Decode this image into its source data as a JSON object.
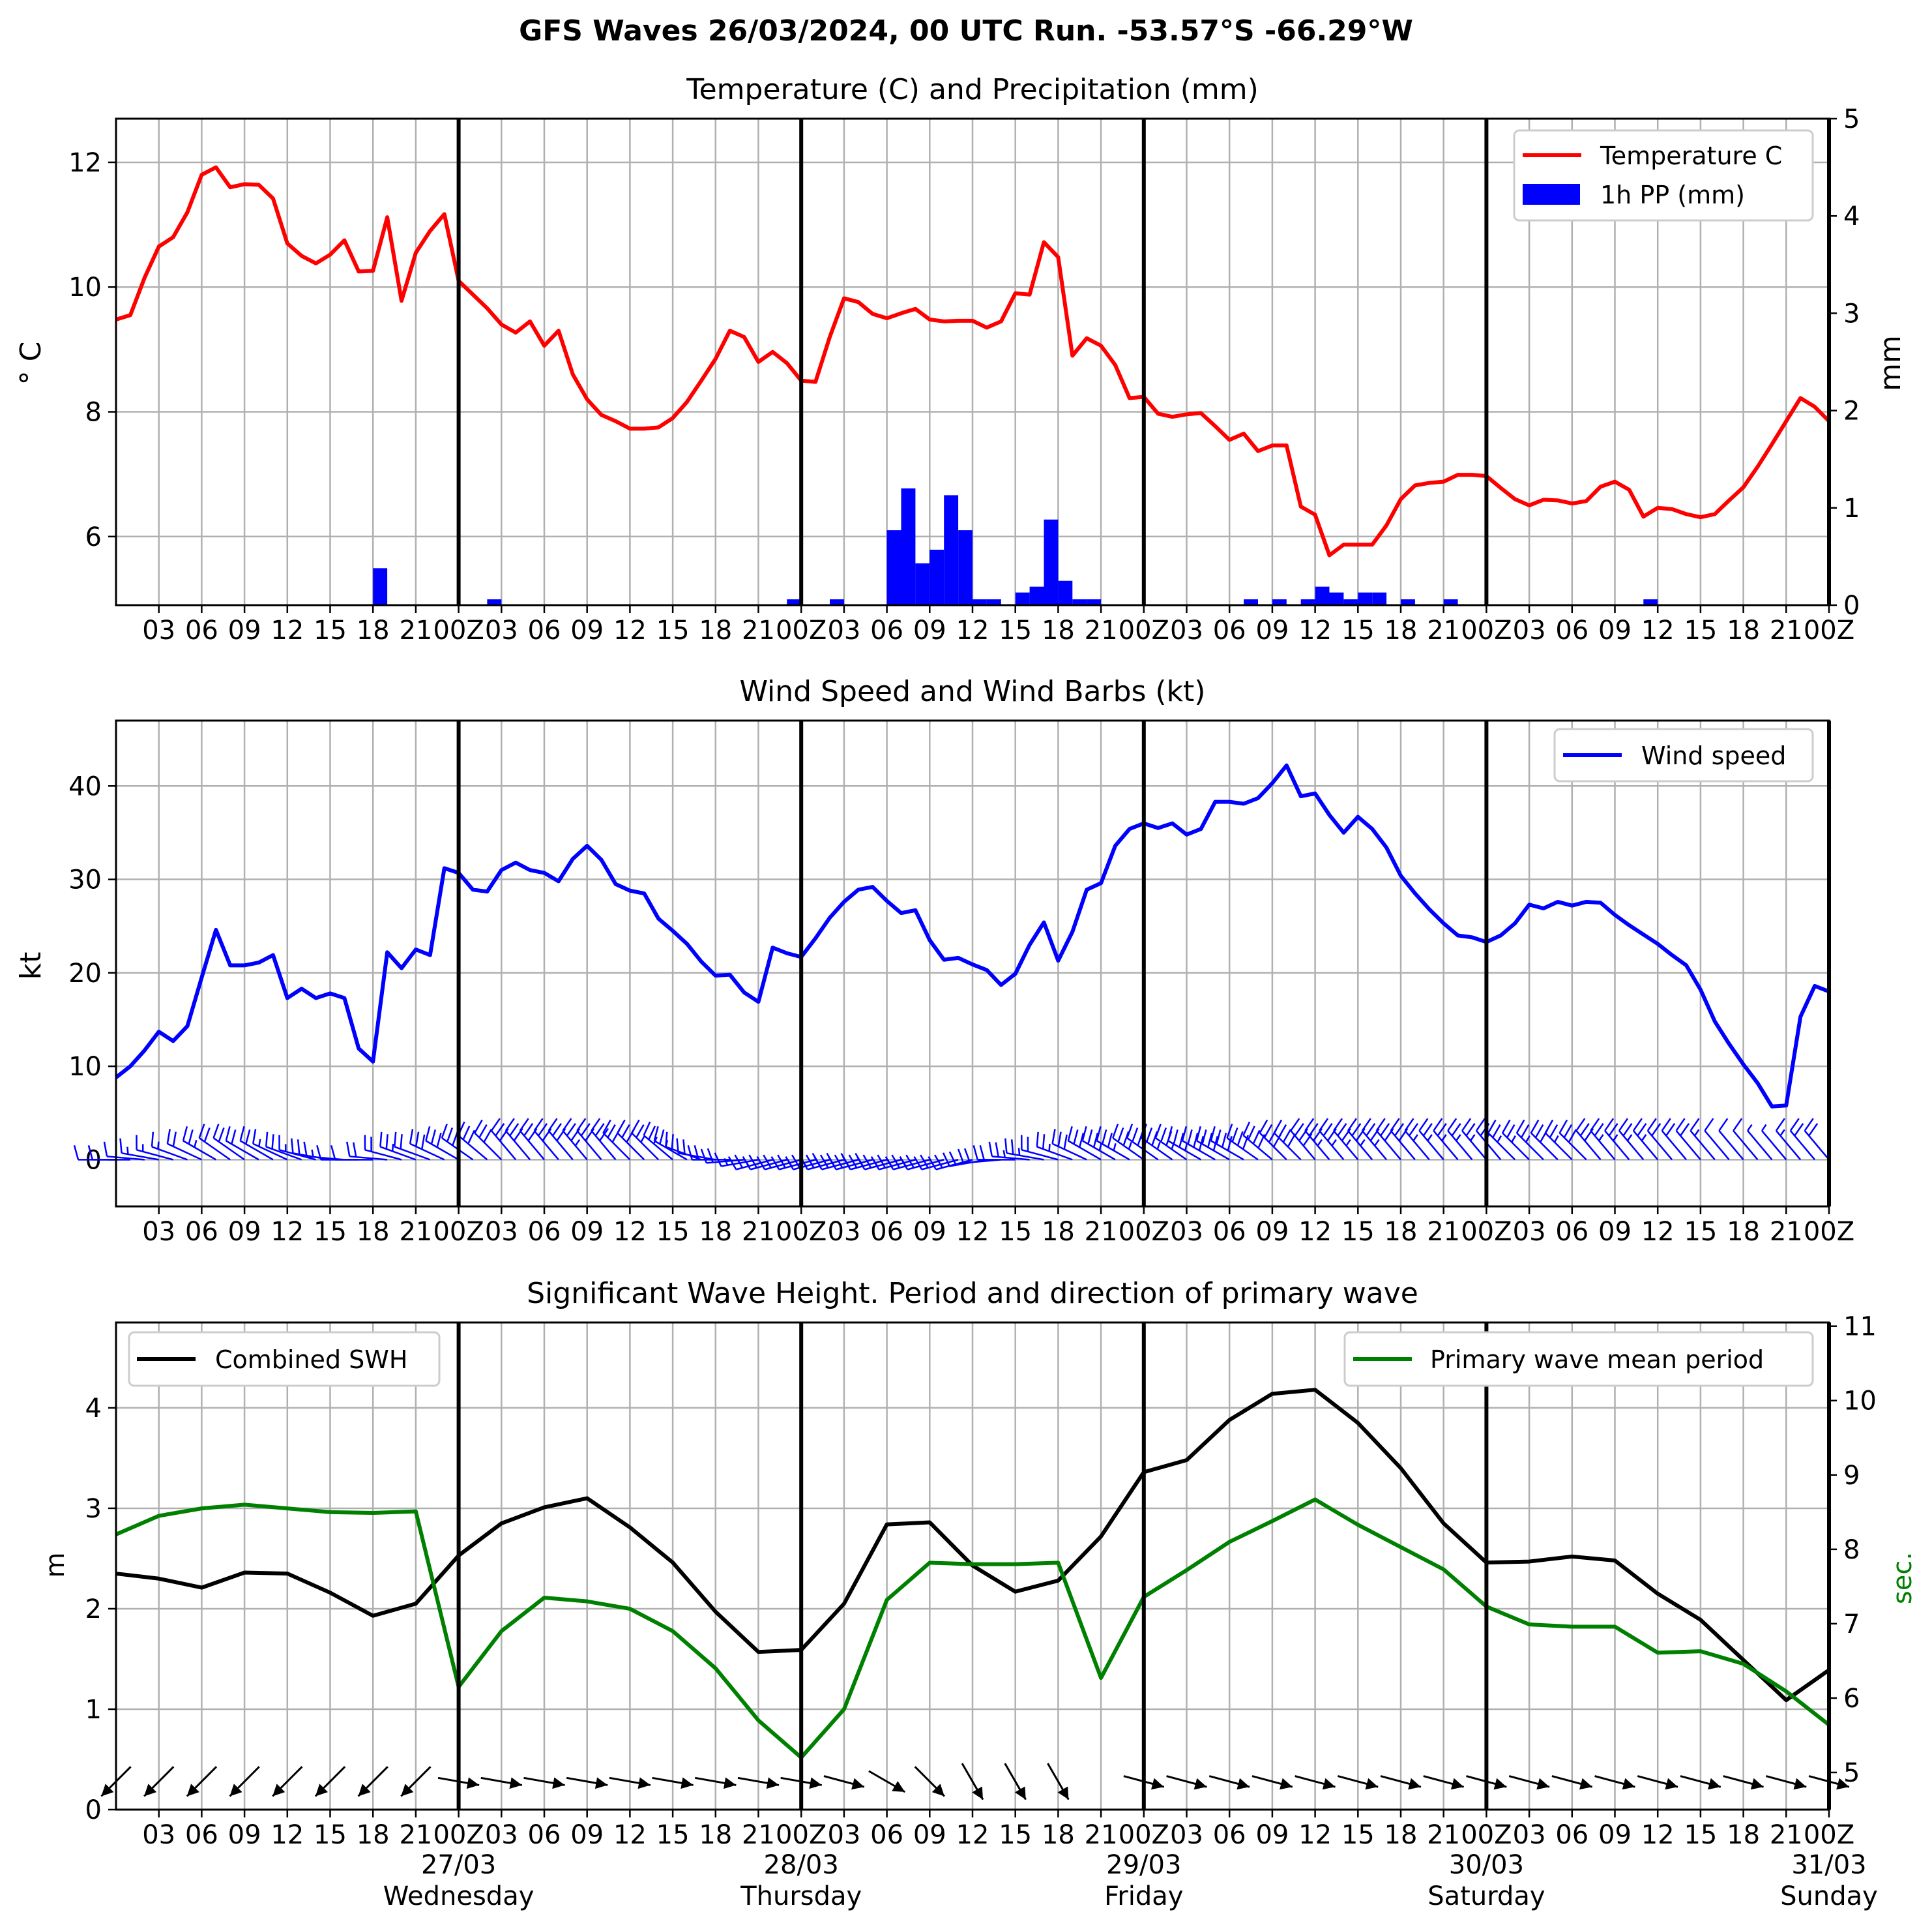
{
  "page": {
    "title": "GFS Waves 26/03/2024, 00 UTC Run. -53.57°S -66.29°W"
  },
  "colors": {
    "temperature": "#ff0000",
    "precipitation": "#0000ff",
    "wind": "#0000ff",
    "swh": "#000000",
    "period": "#008000",
    "grid": "#b0b0b0"
  },
  "time_axis": {
    "hour_ticks": [
      "03",
      "06",
      "09",
      "12",
      "15",
      "18",
      "21",
      "00Z",
      "03",
      "06",
      "09",
      "12",
      "15",
      "18",
      "21",
      "00Z",
      "03",
      "06",
      "09",
      "12",
      "15",
      "18",
      "21",
      "00Z",
      "03",
      "06",
      "09",
      "12",
      "15",
      "18",
      "21",
      "00Z",
      "03",
      "06",
      "09",
      "12",
      "15",
      "18",
      "21",
      "00Z"
    ],
    "day_labels": [
      {
        "date": "27/03",
        "weekday": "Wednesday",
        "hour": 24
      },
      {
        "date": "28/03",
        "weekday": "Thursday",
        "hour": 48
      },
      {
        "date": "29/03",
        "weekday": "Friday",
        "hour": 72
      },
      {
        "date": "30/03",
        "weekday": "Saturday",
        "hour": 96
      },
      {
        "date": "31/03",
        "weekday": "Sunday",
        "hour": 120
      }
    ],
    "day_boundaries_hours": [
      24,
      48,
      72,
      96,
      120
    ]
  },
  "chart_data": [
    {
      "type": "line",
      "title": "Temperature (C) and Precipitation (mm)",
      "xlabel": "",
      "ylabel": "$^\\circ$C",
      "ylabel_right": "mm",
      "x_unit": "hours since 26/03/2024 00 UTC",
      "ylim": [
        4.9,
        12.7
      ],
      "yticks": [
        6,
        8,
        10,
        12
      ],
      "y2lim": [
        0,
        5
      ],
      "y2ticks": [
        0,
        1,
        2,
        3,
        4,
        5
      ],
      "grid": true,
      "legend": {
        "position": "top-right",
        "entries": [
          "Temperature C",
          "1h PP (mm)"
        ]
      },
      "series": [
        {
          "name": "Temperature C",
          "type": "line",
          "x": [
            0,
            1,
            2,
            3,
            4,
            5,
            6,
            7,
            8,
            9,
            10,
            11,
            12,
            13,
            14,
            15,
            16,
            17,
            18,
            19,
            20,
            21,
            22,
            23,
            24,
            25,
            26,
            27,
            28,
            29,
            30,
            31,
            32,
            33,
            34,
            35,
            36,
            37,
            38,
            39,
            40,
            41,
            42,
            43,
            44,
            45,
            46,
            47,
            48,
            49,
            50,
            51,
            52,
            53,
            54,
            55,
            56,
            57,
            58,
            59,
            60,
            61,
            62,
            63,
            64,
            65,
            66,
            67,
            68,
            69,
            70,
            71,
            72,
            73,
            74,
            75,
            76,
            77,
            78,
            79,
            80,
            81,
            82,
            83,
            84,
            85,
            86,
            87,
            88,
            89,
            90,
            91,
            92,
            93,
            94,
            95,
            96,
            97,
            98,
            99,
            100,
            101,
            102,
            103,
            104,
            105,
            106,
            107,
            108,
            109,
            110,
            111,
            112,
            113,
            114,
            115,
            116,
            117,
            118,
            119,
            120
          ],
          "values": [
            9.48,
            9.55,
            10.15,
            10.65,
            10.8,
            11.2,
            11.8,
            11.92,
            11.6,
            11.65,
            11.64,
            11.42,
            10.7,
            10.5,
            10.38,
            10.52,
            10.75,
            10.25,
            10.26,
            11.12,
            9.78,
            10.55,
            10.9,
            11.17,
            10.1,
            9.88,
            9.66,
            9.4,
            9.27,
            9.45,
            9.06,
            9.3,
            8.6,
            8.2,
            7.95,
            7.85,
            7.73,
            7.73,
            7.75,
            7.9,
            8.16,
            8.5,
            8.85,
            9.3,
            9.2,
            8.8,
            8.96,
            8.78,
            8.5,
            8.48,
            9.2,
            9.82,
            9.76,
            9.57,
            9.5,
            9.58,
            9.65,
            9.48,
            9.45,
            9.46,
            9.46,
            9.35,
            9.45,
            9.9,
            9.88,
            10.72,
            10.48,
            8.9,
            9.18,
            9.06,
            8.75,
            8.22,
            8.24,
            7.97,
            7.92,
            7.96,
            7.98,
            7.77,
            7.55,
            7.65,
            7.37,
            7.46,
            7.46,
            6.48,
            6.35,
            5.7,
            5.87,
            5.87,
            5.87,
            6.18,
            6.6,
            6.82,
            6.86,
            6.88,
            6.99,
            6.99,
            6.97,
            6.78,
            6.6,
            6.5,
            6.59,
            6.58,
            6.53,
            6.57,
            6.8,
            6.88,
            6.75,
            6.32,
            6.46,
            6.44,
            6.36,
            6.31,
            6.36,
            6.58,
            6.79,
            7.12,
            7.48,
            7.85,
            8.22,
            8.08,
            7.85
          ]
        },
        {
          "name": "1h PP (mm)",
          "type": "bar",
          "axis": "right",
          "x": [
            19,
            27,
            48,
            51,
            55,
            56,
            57,
            58,
            59,
            60,
            61,
            62,
            64,
            65,
            66,
            67,
            68,
            69,
            80,
            82,
            84,
            85,
            86,
            87,
            88,
            89,
            91,
            94,
            108
          ],
          "values": [
            0.38,
            0.06,
            0.06,
            0.06,
            0.77,
            1.2,
            0.43,
            0.57,
            1.13,
            0.77,
            0.06,
            0.06,
            0.13,
            0.19,
            0.88,
            0.25,
            0.06,
            0.06,
            0.06,
            0.06,
            0.06,
            0.19,
            0.13,
            0.06,
            0.13,
            0.13,
            0.06,
            0.06,
            0.06
          ]
        }
      ]
    },
    {
      "type": "line",
      "title": "Wind Speed and Wind Barbs (kt)",
      "xlabel": "",
      "ylabel": "kt",
      "x_unit": "hours since 26/03/2024 00 UTC",
      "ylim": [
        -5,
        47
      ],
      "yticks": [
        0,
        10,
        20,
        30,
        40
      ],
      "grid": true,
      "legend": {
        "position": "top-right",
        "entries": [
          "Wind speed"
        ]
      },
      "series": [
        {
          "name": "Wind speed",
          "x": [
            0,
            1,
            2,
            3,
            4,
            5,
            6,
            7,
            8,
            9,
            10,
            11,
            12,
            13,
            14,
            15,
            16,
            17,
            18,
            19,
            20,
            21,
            22,
            23,
            24,
            25,
            26,
            27,
            28,
            29,
            30,
            31,
            32,
            33,
            34,
            35,
            36,
            37,
            38,
            39,
            40,
            41,
            42,
            43,
            44,
            45,
            46,
            47,
            48,
            49,
            50,
            51,
            52,
            53,
            54,
            55,
            56,
            57,
            58,
            59,
            60,
            61,
            62,
            63,
            64,
            65,
            66,
            67,
            68,
            69,
            70,
            71,
            72,
            73,
            74,
            75,
            76,
            77,
            78,
            79,
            80,
            81,
            82,
            83,
            84,
            85,
            86,
            87,
            88,
            89,
            90,
            91,
            92,
            93,
            94,
            95,
            96,
            97,
            98,
            99,
            100,
            101,
            102,
            103,
            104,
            105,
            106,
            107,
            108,
            109,
            110,
            111,
            112,
            113,
            114,
            115,
            116,
            117,
            118,
            119,
            120
          ],
          "values": [
            8.8,
            10.0,
            11.7,
            13.7,
            12.7,
            14.3,
            19.5,
            24.6,
            20.8,
            20.8,
            21.1,
            21.9,
            17.3,
            18.3,
            17.3,
            17.8,
            17.3,
            11.9,
            10.5,
            22.2,
            20.5,
            22.5,
            21.9,
            31.2,
            30.7,
            28.9,
            28.7,
            31.0,
            31.8,
            31.0,
            30.7,
            29.8,
            32.2,
            33.6,
            32.1,
            29.5,
            28.8,
            28.5,
            25.8,
            24.5,
            23.1,
            21.2,
            19.7,
            19.8,
            17.9,
            16.9,
            22.7,
            22.1,
            21.7,
            23.7,
            25.9,
            27.6,
            28.9,
            29.2,
            27.7,
            26.4,
            26.7,
            23.5,
            21.4,
            21.6,
            20.9,
            20.3,
            18.7,
            19.9,
            23.0,
            25.4,
            21.3,
            24.4,
            28.9,
            29.6,
            33.6,
            35.4,
            36.0,
            35.5,
            36.0,
            34.8,
            35.4,
            38.3,
            38.3,
            38.1,
            38.7,
            40.3,
            42.2,
            38.9,
            39.2,
            36.9,
            35.0,
            36.7,
            35.4,
            33.4,
            30.4,
            28.5,
            26.8,
            25.3,
            24.0,
            23.8,
            23.3,
            24.0,
            25.3,
            27.3,
            26.9,
            27.6,
            27.2,
            27.6,
            27.5,
            26.2,
            25.1,
            24.1,
            23.1,
            21.9,
            20.8,
            18.2,
            14.8,
            12.4,
            10.2,
            8.2,
            5.7,
            5.8,
            15.3,
            18.6,
            18.0
          ]
        }
      ],
      "wind_barbs": {
        "y": 0,
        "from_direction_deg": [
          270,
          270,
          275,
          280,
          285,
          290,
          295,
          300,
          305,
          305,
          300,
          300,
          295,
          290,
          285,
          280,
          275,
          270,
          270,
          275,
          285,
          290,
          290,
          295,
          300,
          305,
          310,
          315,
          320,
          320,
          320,
          320,
          320,
          320,
          320,
          320,
          315,
          315,
          315,
          310,
          300,
          290,
          280,
          270,
          265,
          260,
          255,
          255,
          255,
          255,
          255,
          255,
          255,
          255,
          255,
          255,
          255,
          255,
          255,
          255,
          255,
          260,
          265,
          270,
          275,
          280,
          285,
          290,
          295,
          300,
          300,
          300,
          305,
          305,
          305,
          305,
          300,
          300,
          300,
          300,
          305,
          310,
          315,
          315,
          320,
          320,
          320,
          320,
          320,
          320,
          320,
          320,
          320,
          320,
          320,
          320,
          320,
          320,
          315,
          315,
          315,
          315,
          315,
          315,
          320,
          320,
          320,
          320,
          320,
          320,
          320,
          320,
          320,
          320,
          320,
          320,
          320,
          320,
          320,
          320,
          320
        ]
      }
    },
    {
      "type": "line",
      "title": "Significant Wave Height. Period and direction of primary wave",
      "xlabel": "",
      "ylabel": "m",
      "ylabel_right": "sec.",
      "x_unit": "hours since 26/03/2024 00 UTC",
      "ylim": [
        0,
        4.85
      ],
      "yticks": [
        0,
        1,
        2,
        3,
        4
      ],
      "y2lim": [
        4.5,
        11.05
      ],
      "y2ticks": [
        5,
        6,
        7,
        8,
        9,
        10,
        11
      ],
      "grid": true,
      "legend": {
        "position": "top-left and top-right",
        "entries": [
          "Combined SWH",
          "Primary wave mean period"
        ]
      },
      "series": [
        {
          "name": "Combined SWH",
          "x": [
            0,
            3,
            6,
            9,
            12,
            15,
            18,
            21,
            24,
            27,
            30,
            33,
            36,
            39,
            42,
            45,
            48,
            51,
            54,
            57,
            60,
            63,
            66,
            69,
            72,
            75,
            78,
            81,
            84,
            87,
            90,
            93,
            96,
            99,
            102,
            105,
            108,
            111,
            114,
            117,
            120
          ],
          "values": [
            2.35,
            2.3,
            2.21,
            2.36,
            2.35,
            2.16,
            1.93,
            2.05,
            2.53,
            2.85,
            3.01,
            3.1,
            2.81,
            2.46,
            1.97,
            1.57,
            1.59,
            2.05,
            2.84,
            2.86,
            2.43,
            2.17,
            2.28,
            2.72,
            3.36,
            3.48,
            3.88,
            4.14,
            4.18,
            3.85,
            3.4,
            2.85,
            2.46,
            2.47,
            2.52,
            2.48,
            2.15,
            1.89,
            1.49,
            1.09,
            1.39
          ]
        },
        {
          "name": "Primary wave mean period",
          "axis": "right",
          "x": [
            0,
            3,
            6,
            9,
            12,
            15,
            18,
            21,
            24,
            27,
            30,
            33,
            36,
            39,
            42,
            45,
            48,
            51,
            54,
            57,
            60,
            63,
            66,
            69,
            72,
            75,
            78,
            81,
            84,
            87,
            90,
            93,
            96,
            99,
            102,
            105,
            108,
            111,
            114,
            117,
            120
          ],
          "values": [
            8.2,
            8.45,
            8.55,
            8.6,
            8.55,
            8.5,
            8.49,
            8.51,
            6.15,
            6.9,
            7.35,
            7.3,
            7.2,
            6.9,
            6.4,
            5.7,
            5.2,
            5.85,
            7.32,
            7.82,
            7.8,
            7.8,
            7.82,
            6.27,
            7.36,
            7.72,
            8.1,
            8.38,
            8.67,
            8.33,
            8.03,
            7.73,
            7.23,
            6.99,
            6.96,
            6.96,
            6.61,
            6.63,
            6.46,
            6.09,
            5.64
          ]
        }
      ],
      "wave_direction_arrows": {
        "y": 0.28,
        "x": [
          0,
          3,
          6,
          9,
          12,
          15,
          18,
          21,
          24,
          27,
          30,
          33,
          36,
          39,
          42,
          45,
          48,
          51,
          54,
          57,
          60,
          63,
          66,
          69,
          72,
          75,
          78,
          81,
          84,
          87,
          90,
          93,
          96,
          99,
          102,
          105,
          108,
          111,
          114,
          117,
          120
        ],
        "from_direction_deg": [
          45,
          45,
          45,
          45,
          45,
          45,
          45,
          45,
          280,
          280,
          280,
          280,
          280,
          280,
          280,
          280,
          280,
          285,
          300,
          315,
          330,
          330,
          330,
          null,
          285,
          285,
          285,
          285,
          285,
          285,
          285,
          285,
          285,
          285,
          285,
          285,
          285,
          285,
          285,
          285,
          285
        ]
      }
    }
  ]
}
